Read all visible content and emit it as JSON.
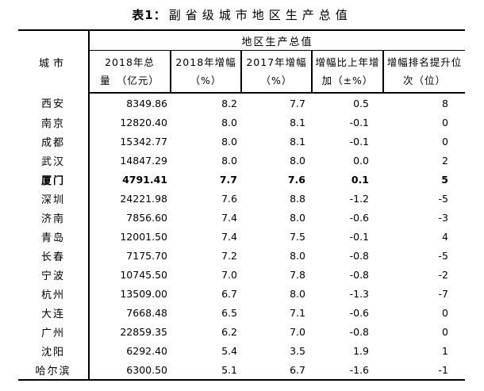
{
  "title": {
    "prefix": "表1：",
    "text": "副省级城市地区生产总值"
  },
  "table": {
    "city_header": "城市",
    "group_header": "地区生产总值",
    "columns": [
      {
        "line1": "2018年总",
        "line2": "量　（亿元）"
      },
      {
        "line1": "2018年增幅",
        "line2": "（%）"
      },
      {
        "line1": "2017年增幅",
        "line2": "（%）"
      },
      {
        "line1": "增幅比上年增",
        "line2": "加（±%）"
      },
      {
        "line1": "增幅排名提升位",
        "line2": "次（位）"
      }
    ],
    "rows": [
      {
        "city": "西安",
        "total_2018": "8349.86",
        "growth_2018": "8.2",
        "growth_2017": "7.7",
        "change": "0.5",
        "rank_change": "8",
        "bold": false
      },
      {
        "city": "南京",
        "total_2018": "12820.40",
        "growth_2018": "8.0",
        "growth_2017": "8.1",
        "change": "-0.1",
        "rank_change": "0",
        "bold": false
      },
      {
        "city": "成都",
        "total_2018": "15342.77",
        "growth_2018": "8.0",
        "growth_2017": "8.1",
        "change": "-0.1",
        "rank_change": "0",
        "bold": false
      },
      {
        "city": "武汉",
        "total_2018": "14847.29",
        "growth_2018": "8.0",
        "growth_2017": "8.0",
        "change": "0.0",
        "rank_change": "2",
        "bold": false
      },
      {
        "city": "厦门",
        "total_2018": "4791.41",
        "growth_2018": "7.7",
        "growth_2017": "7.6",
        "change": "0.1",
        "rank_change": "5",
        "bold": true
      },
      {
        "city": "深圳",
        "total_2018": "24221.98",
        "growth_2018": "7.6",
        "growth_2017": "8.8",
        "change": "-1.2",
        "rank_change": "-5",
        "bold": false
      },
      {
        "city": "济南",
        "total_2018": "7856.60",
        "growth_2018": "7.4",
        "growth_2017": "8.0",
        "change": "-0.6",
        "rank_change": "-3",
        "bold": false
      },
      {
        "city": "青岛",
        "total_2018": "12001.50",
        "growth_2018": "7.4",
        "growth_2017": "7.5",
        "change": "-0.1",
        "rank_change": "4",
        "bold": false
      },
      {
        "city": "长春",
        "total_2018": "7175.70",
        "growth_2018": "7.2",
        "growth_2017": "8.0",
        "change": "-0.8",
        "rank_change": "-5",
        "bold": false
      },
      {
        "city": "宁波",
        "total_2018": "10745.50",
        "growth_2018": "7.0",
        "growth_2017": "7.8",
        "change": "-0.8",
        "rank_change": "-2",
        "bold": false
      },
      {
        "city": "杭州",
        "total_2018": "13509.00",
        "growth_2018": "6.7",
        "growth_2017": "8.0",
        "change": "-1.3",
        "rank_change": "-7",
        "bold": false
      },
      {
        "city": "大连",
        "total_2018": "7668.48",
        "growth_2018": "6.5",
        "growth_2017": "7.1",
        "change": "-0.6",
        "rank_change": "0",
        "bold": false
      },
      {
        "city": "广州",
        "total_2018": "22859.35",
        "growth_2018": "6.2",
        "growth_2017": "7.0",
        "change": "-0.8",
        "rank_change": "0",
        "bold": false
      },
      {
        "city": "沈阳",
        "total_2018": "6292.40",
        "growth_2018": "5.4",
        "growth_2017": "3.5",
        "change": "1.9",
        "rank_change": "1",
        "bold": false
      },
      {
        "city": "哈尔滨",
        "total_2018": "6300.50",
        "growth_2018": "5.1",
        "growth_2017": "6.7",
        "change": "-1.6",
        "rank_change": "-1",
        "bold": false
      }
    ]
  },
  "colors": {
    "text": "#000000",
    "background": "#ffffff",
    "border": "#000000"
  }
}
